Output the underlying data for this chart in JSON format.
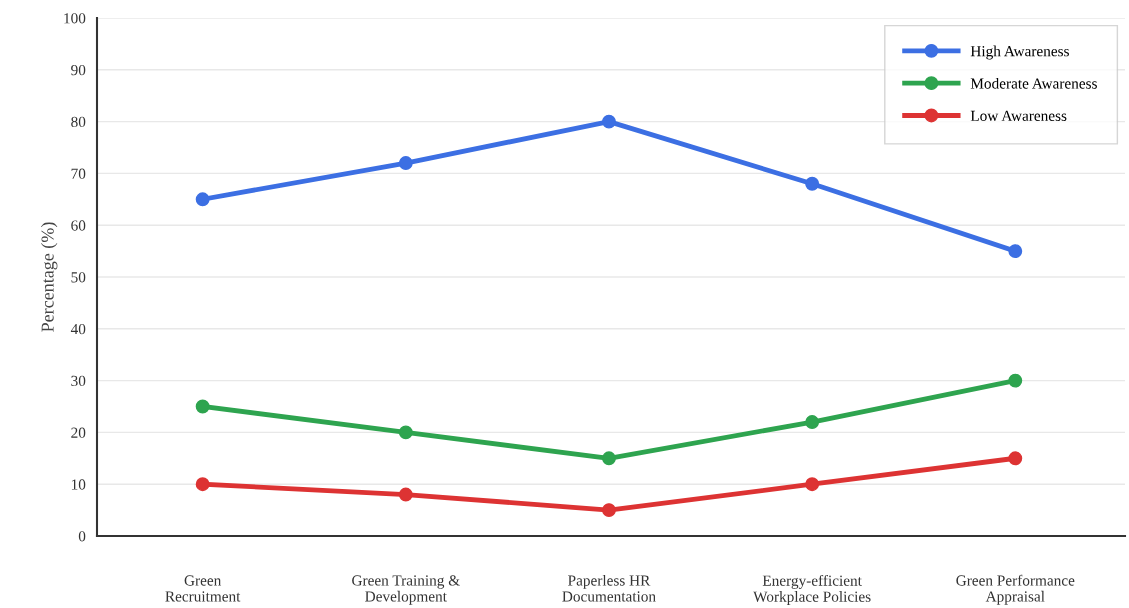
{
  "chart_data": {
    "type": "line",
    "ylabel": "Percentage (%)",
    "categories": [
      "Green\nRecruitment",
      "Green Training &\nDevelopment",
      "Paperless HR\nDocumentation",
      "Energy-efficient\nWorkplace Policies",
      "Green Performance\nAppraisal"
    ],
    "series": [
      {
        "name": "High Awareness",
        "color": "#3c6fe3",
        "values": [
          65,
          72,
          80,
          68,
          55
        ]
      },
      {
        "name": "Moderate Awareness",
        "color": "#2ea44f",
        "values": [
          25,
          20,
          15,
          22,
          30
        ]
      },
      {
        "name": "Low Awareness",
        "color": "#dd3333",
        "values": [
          10,
          8,
          5,
          10,
          15
        ]
      }
    ],
    "ylim": [
      0,
      100
    ],
    "yticks": [
      0,
      10,
      20,
      30,
      40,
      50,
      60,
      70,
      80,
      90,
      100
    ],
    "grid": "y",
    "legend": "top right",
    "marker": "circle",
    "line_style": "solid"
  }
}
